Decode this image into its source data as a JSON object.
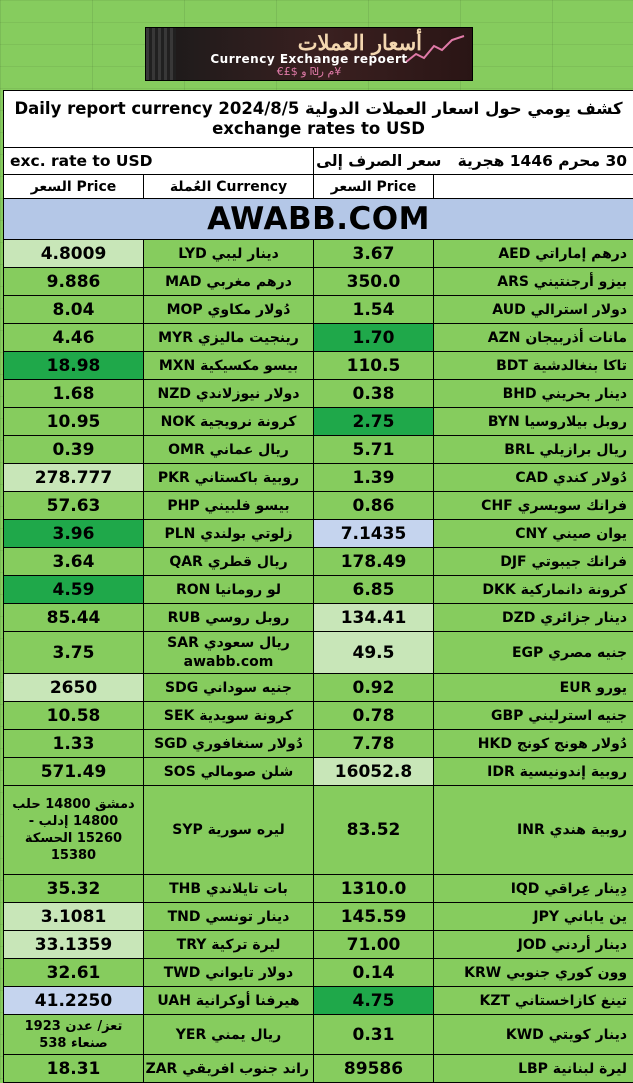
{
  "banner": {
    "title_ar": "أسعار العملات",
    "title_en": "Currency Exchange repoert",
    "symbols": "€£$ م ر₪ و¥",
    "side": "4.3"
  },
  "header": {
    "line1": "كشف يومي حول اسعار العملات الدولية 2024/8/5 Daily report currency",
    "line2": "exchange rates to USD",
    "hijri": "30 محرم 1446 هجرية",
    "ar_rate": "سعر الصرف إلى الدولار الأميركي",
    "en_rate": "exc. rate to USD",
    "col_price_left": "السعر Price",
    "col_currency": "العُملة Currency",
    "col_price_right": "السعر Price",
    "site": "AWABB.COM"
  },
  "rows": [
    {
      "l_price": "4.8009",
      "l_cur": "دينار ليبي  LYD",
      "r_price": "3.67",
      "r_cur": "درهم إماراتي  AED",
      "l_style": "lg",
      "r_style": ""
    },
    {
      "l_price": "9.886",
      "l_cur": "درهم مغربي  MAD",
      "r_price": "350.0",
      "r_cur": "بيزو أرجنتيني  ARS",
      "l_style": "",
      "r_style": ""
    },
    {
      "l_price": "8.04",
      "l_cur": "دُولار مكاوي  MOP",
      "r_price": "1.54",
      "r_cur": "دولار استرالي  AUD",
      "l_style": "",
      "r_style": ""
    },
    {
      "l_price": "4.46",
      "l_cur": "رينجيت ماليزي  MYR",
      "r_price": "1.70",
      "r_cur": "مانات أذربيجان  AZN",
      "l_style": "",
      "r_style": "dg"
    },
    {
      "l_price": "18.98",
      "l_cur": "بيسو مكسيكية  MXN",
      "r_price": "110.5",
      "r_cur": "تاكا بنغالدشية  BDT",
      "l_style": "dg",
      "r_style": ""
    },
    {
      "l_price": "1.68",
      "l_cur": "دولار نيوزلاندي  NZD",
      "r_price": "0.38",
      "r_cur": "دينار بحريني  BHD",
      "l_style": "",
      "r_style": ""
    },
    {
      "l_price": "10.95",
      "l_cur": "كرونة نرويجية  NOK",
      "r_price": "2.75",
      "r_cur": "روبل بيلاروسيا  BYN",
      "l_style": "",
      "r_style": "dg"
    },
    {
      "l_price": "0.39",
      "l_cur": "ريال عماني  OMR",
      "r_price": "5.71",
      "r_cur": "ريال برازيلي  BRL",
      "l_style": "",
      "r_style": ""
    },
    {
      "l_price": "278.777",
      "l_cur": "روبية باكستاني  PKR",
      "r_price": "1.39",
      "r_cur": "دُولار كندي  CAD",
      "l_style": "lg",
      "r_style": ""
    },
    {
      "l_price": "57.63",
      "l_cur": "بيسو فلبيني  PHP",
      "r_price": "0.86",
      "r_cur": "فرانك سويسري  CHF",
      "l_style": "",
      "r_style": ""
    },
    {
      "l_price": "3.96",
      "l_cur": "زلوتي بولندي  PLN",
      "r_price": "7.1435",
      "r_cur": "يوان صيني  CNY",
      "l_style": "dg",
      "r_style": "bl"
    },
    {
      "l_price": "3.64",
      "l_cur": "ريال قطري  QAR",
      "r_price": "178.49",
      "r_cur": "فرانك جيبوتي  DJF",
      "l_style": "",
      "r_style": ""
    },
    {
      "l_price": "4.59",
      "l_cur": "لو رومانيا  RON",
      "r_price": "6.85",
      "r_cur": "كرونة دانماركية  DKK",
      "l_style": "dg",
      "r_style": ""
    },
    {
      "l_price": "85.44",
      "l_cur": "روبل روسي  RUB",
      "r_price": "134.41",
      "r_cur": "دينار جزائري  DZD",
      "l_style": "",
      "r_style": "lg"
    }
  ],
  "sar_row": {
    "l_price": "3.75",
    "l_cur1": "ريال سعودي  SAR",
    "l_cur2": "awabb.com",
    "r_price": "49.5",
    "r_cur": "جنيه مصري  EGP"
  },
  "rows2": [
    {
      "l_price": "2650",
      "l_cur": "جنيه سوداني  SDG",
      "r_price": "0.92",
      "r_cur": "يورو  EUR",
      "l_style": "lg",
      "r_style": ""
    },
    {
      "l_price": "10.58",
      "l_cur": "كرونة سويدية  SEK",
      "r_price": "0.78",
      "r_cur": "جنيه استرليني  GBP",
      "l_style": "",
      "r_style": ""
    },
    {
      "l_price": "1.33",
      "l_cur": "دُولار سنغافوري  SGD",
      "r_price": "7.78",
      "r_cur": "دُولار هونج كونج  HKD",
      "l_style": "",
      "r_style": ""
    },
    {
      "l_price": "571.49",
      "l_cur": "شلن صومالي  SOS",
      "r_price": "16052.8",
      "r_cur": "روبية إندونيسية  IDR",
      "l_style": "",
      "r_style": "lg"
    }
  ],
  "syp_row": {
    "l_price": "دمشق 14800 حلب 14800 إدلب - 15260 الحسكة 15380",
    "l_cur": "ليره سورية  SYP",
    "r_price": "83.52",
    "r_cur": "روبية هندي  INR"
  },
  "rows3": [
    {
      "l_price": "35.32",
      "l_cur": "بات تايلاندي  THB",
      "r_price": "1310.0",
      "r_cur": "دِينار عِراقي  IQD",
      "l_style": "",
      "r_style": ""
    },
    {
      "l_price": "3.1081",
      "l_cur": "دينار تونسي  TND",
      "r_price": "145.59",
      "r_cur": "ين ياباني  JPY",
      "l_style": "lg",
      "r_style": ""
    },
    {
      "l_price": "33.1359",
      "l_cur": "ليرة تركية  TRY",
      "r_price": "71.00",
      "r_cur": "دينار أردني  JOD",
      "l_style": "lg",
      "r_style": ""
    },
    {
      "l_price": "32.61",
      "l_cur": "دولار تايواني  TWD",
      "r_price": "0.14",
      "r_cur": "وون كوري جنوبي  KRW",
      "l_style": "",
      "r_style": ""
    },
    {
      "l_price": "41.2250",
      "l_cur": "هيرفنا أوكرانية  UAH",
      "r_price": "4.75",
      "r_cur": "تينغ كازاخستاني  KZT",
      "l_style": "bl",
      "r_style": "dg"
    }
  ],
  "yer_row": {
    "l_price": "تعز/ عدن 1923 صنعاء 538",
    "l_cur": "ريال يمني  YER",
    "r_price": "0.31",
    "r_cur": "دينار كويتي  KWD"
  },
  "last_row": {
    "l_price": "18.31",
    "l_cur": "راند جنوب افريقي  ZAR",
    "r_price": "89586",
    "r_cur": "ليرة لبنانية  LBP"
  }
}
